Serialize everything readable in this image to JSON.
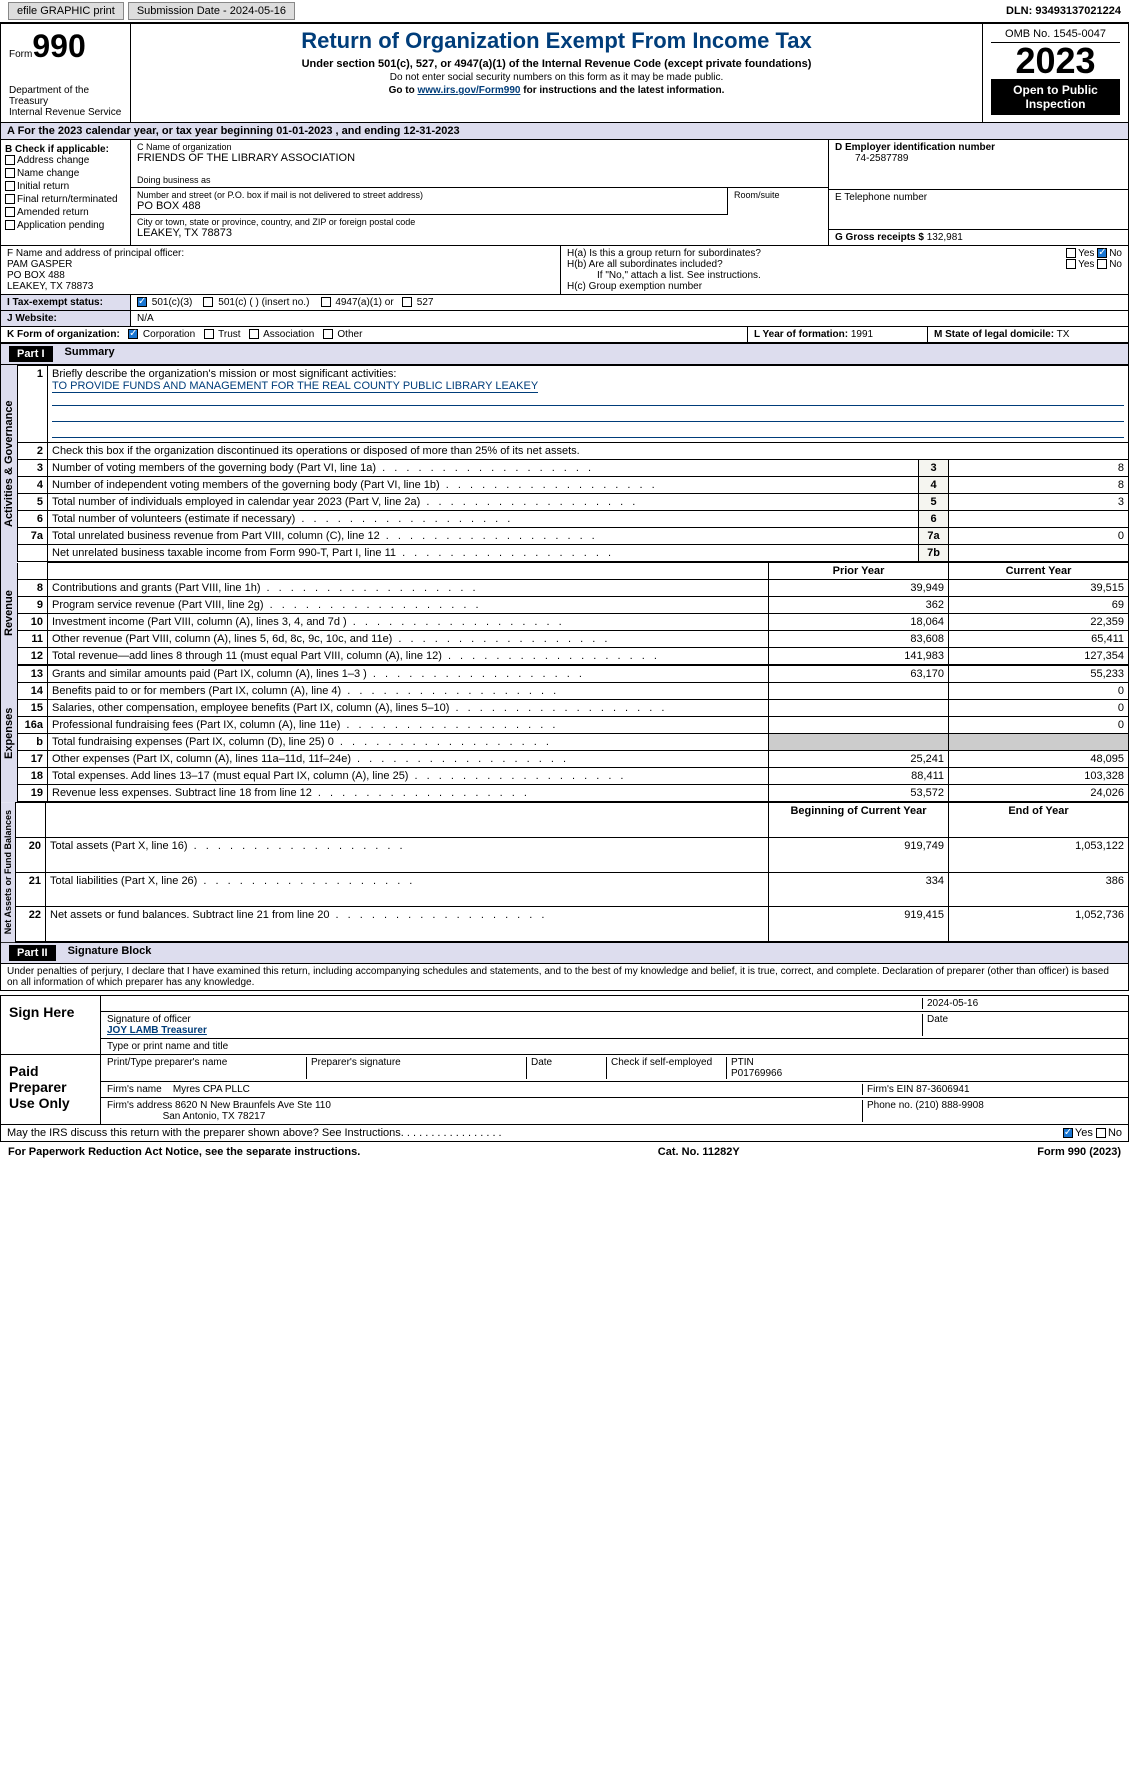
{
  "header": {
    "efile": "efile GRAPHIC print",
    "submission_label": "Submission Date - 2024-05-16",
    "dln": "DLN: 93493137021224"
  },
  "form_title_area": {
    "form_label": "Form",
    "form_number": "990",
    "department": "Department of the Treasury",
    "service": "Internal Revenue Service",
    "title": "Return of Organization Exempt From Income Tax",
    "subtitle": "Under section 501(c), 527, or 4947(a)(1) of the Internal Revenue Code (except private foundations)",
    "note1": "Do not enter social security numbers on this form as it may be made public.",
    "note2_pre": "Go to ",
    "note2_link": "www.irs.gov/Form990",
    "note2_post": " for instructions and the latest information.",
    "omb": "OMB No. 1545-0047",
    "year": "2023",
    "open": "Open to Public Inspection"
  },
  "tax_year_line": "A For the 2023 calendar year, or tax year beginning 01-01-2023   , and ending 12-31-2023",
  "box_b": {
    "label": "B Check if applicable:",
    "items": [
      "Address change",
      "Name change",
      "Initial return",
      "Final return/terminated",
      "Amended return",
      "Application pending"
    ]
  },
  "box_c": {
    "name_label": "C Name of organization",
    "name": "FRIENDS OF THE LIBRARY ASSOCIATION",
    "dba_label": "Doing business as",
    "dba": "",
    "street_label": "Number and street (or P.O. box if mail is not delivered to street address)",
    "street": "PO BOX 488",
    "room_label": "Room/suite",
    "city_label": "City or town, state or province, country, and ZIP or foreign postal code",
    "city": "LEAKEY, TX  78873"
  },
  "box_d": {
    "label": "D Employer identification number",
    "value": "74-2587789"
  },
  "box_e": {
    "label": "E Telephone number",
    "value": ""
  },
  "box_g": {
    "label": "G Gross receipts $",
    "value": "132,981"
  },
  "box_f": {
    "label": "F  Name and address of principal officer:",
    "name": "PAM GASPER",
    "street": "PO BOX 488",
    "city": "LEAKEY, TX  78873"
  },
  "box_h": {
    "ha": "H(a)  Is this a group return for subordinates?",
    "hb": "H(b)  Are all subordinates included?",
    "hb_note": "If \"No,\" attach a list. See instructions.",
    "hc": "H(c)  Group exemption number"
  },
  "box_i": {
    "label": "I  Tax-exempt status:",
    "opts": [
      "501(c)(3)",
      "501(c) (  ) (insert no.)",
      "4947(a)(1) or",
      "527"
    ]
  },
  "box_j": {
    "label": "J  Website:",
    "value": "N/A"
  },
  "box_k": {
    "label": "K Form of organization:",
    "opts": [
      "Corporation",
      "Trust",
      "Association",
      "Other"
    ]
  },
  "box_l": {
    "label": "L Year of formation:",
    "value": "1991"
  },
  "box_m": {
    "label": "M State of legal domicile:",
    "value": "TX"
  },
  "part1": {
    "header": "Part I",
    "title": "Summary",
    "line1_label": "Briefly describe the organization's mission or most significant activities:",
    "line1_value": "TO PROVIDE FUNDS AND MANAGEMENT FOR THE REAL COUNTY PUBLIC LIBRARY LEAKEY",
    "line2": "Check this box     if the organization discontinued its operations or disposed of more than 25% of its net assets.",
    "governance_rows": [
      {
        "num": "3",
        "label": "Number of voting members of the governing body (Part VI, line 1a)",
        "box": "3",
        "val": "8"
      },
      {
        "num": "4",
        "label": "Number of independent voting members of the governing body (Part VI, line 1b)",
        "box": "4",
        "val": "8"
      },
      {
        "num": "5",
        "label": "Total number of individuals employed in calendar year 2023 (Part V, line 2a)",
        "box": "5",
        "val": "3"
      },
      {
        "num": "6",
        "label": "Total number of volunteers (estimate if necessary)",
        "box": "6",
        "val": ""
      },
      {
        "num": "7a",
        "label": "Total unrelated business revenue from Part VIII, column (C), line 12",
        "box": "7a",
        "val": "0"
      },
      {
        "num": "",
        "label": "Net unrelated business taxable income from Form 990-T, Part I, line 11",
        "box": "7b",
        "val": ""
      }
    ],
    "col_headers": {
      "prior": "Prior Year",
      "current": "Current Year",
      "begin": "Beginning of Current Year",
      "end": "End of Year"
    },
    "revenue_rows": [
      {
        "num": "8",
        "label": "Contributions and grants (Part VIII, line 1h)",
        "prior": "39,949",
        "current": "39,515"
      },
      {
        "num": "9",
        "label": "Program service revenue (Part VIII, line 2g)",
        "prior": "362",
        "current": "69"
      },
      {
        "num": "10",
        "label": "Investment income (Part VIII, column (A), lines 3, 4, and 7d )",
        "prior": "18,064",
        "current": "22,359"
      },
      {
        "num": "11",
        "label": "Other revenue (Part VIII, column (A), lines 5, 6d, 8c, 9c, 10c, and 11e)",
        "prior": "83,608",
        "current": "65,411"
      },
      {
        "num": "12",
        "label": "Total revenue—add lines 8 through 11 (must equal Part VIII, column (A), line 12)",
        "prior": "141,983",
        "current": "127,354"
      }
    ],
    "expense_rows": [
      {
        "num": "13",
        "label": "Grants and similar amounts paid (Part IX, column (A), lines 1–3 )",
        "prior": "63,170",
        "current": "55,233"
      },
      {
        "num": "14",
        "label": "Benefits paid to or for members (Part IX, column (A), line 4)",
        "prior": "",
        "current": "0"
      },
      {
        "num": "15",
        "label": "Salaries, other compensation, employee benefits (Part IX, column (A), lines 5–10)",
        "prior": "",
        "current": "0"
      },
      {
        "num": "16a",
        "label": "Professional fundraising fees (Part IX, column (A), line 11e)",
        "prior": "",
        "current": "0"
      },
      {
        "num": "b",
        "label": "Total fundraising expenses (Part IX, column (D), line 25) 0",
        "prior": "grey",
        "current": "grey"
      },
      {
        "num": "17",
        "label": "Other expenses (Part IX, column (A), lines 11a–11d, 11f–24e)",
        "prior": "25,241",
        "current": "48,095"
      },
      {
        "num": "18",
        "label": "Total expenses. Add lines 13–17 (must equal Part IX, column (A), line 25)",
        "prior": "88,411",
        "current": "103,328"
      },
      {
        "num": "19",
        "label": "Revenue less expenses. Subtract line 18 from line 12",
        "prior": "53,572",
        "current": "24,026"
      }
    ],
    "net_rows": [
      {
        "num": "20",
        "label": "Total assets (Part X, line 16)",
        "prior": "919,749",
        "current": "1,053,122"
      },
      {
        "num": "21",
        "label": "Total liabilities (Part X, line 26)",
        "prior": "334",
        "current": "386"
      },
      {
        "num": "22",
        "label": "Net assets or fund balances. Subtract line 21 from line 20",
        "prior": "919,415",
        "current": "1,052,736"
      }
    ],
    "side_labels": {
      "gov": "Activities & Governance",
      "rev": "Revenue",
      "exp": "Expenses",
      "net": "Net Assets or Fund Balances"
    }
  },
  "part2": {
    "header": "Part II",
    "title": "Signature Block",
    "declaration": "Under penalties of perjury, I declare that I have examined this return, including accompanying schedules and statements, and to the best of my knowledge and belief, it is true, correct, and complete. Declaration of preparer (other than officer) is based on all information of which preparer has any knowledge.",
    "sign_here": "Sign Here",
    "sig_date": "2024-05-16",
    "sig_officer_label": "Signature of officer",
    "sig_date_label": "Date",
    "officer_name": "JOY LAMB Treasurer",
    "officer_type_label": "Type or print name and title",
    "paid_label": "Paid Preparer Use Only",
    "prep_name_label": "Print/Type preparer's name",
    "prep_sig_label": "Preparer's signature",
    "prep_date_label": "Date",
    "check_self": "Check     if self-employed",
    "ptin_label": "PTIN",
    "ptin": "P01769966",
    "firm_name_label": "Firm's name",
    "firm_name": "Myres CPA PLLC",
    "firm_ein_label": "Firm's EIN",
    "firm_ein": "87-3606941",
    "firm_addr_label": "Firm's address",
    "firm_addr": "8620 N New Braunfels Ave Ste 110",
    "firm_city": "San Antonio, TX  78217",
    "phone_label": "Phone no.",
    "phone": "(210) 888-9908",
    "discuss": "May the IRS discuss this return with the preparer shown above? See Instructions."
  },
  "footer": {
    "left": "For Paperwork Reduction Act Notice, see the separate instructions.",
    "mid": "Cat. No. 11282Y",
    "right": "Form 990 (2023)"
  }
}
